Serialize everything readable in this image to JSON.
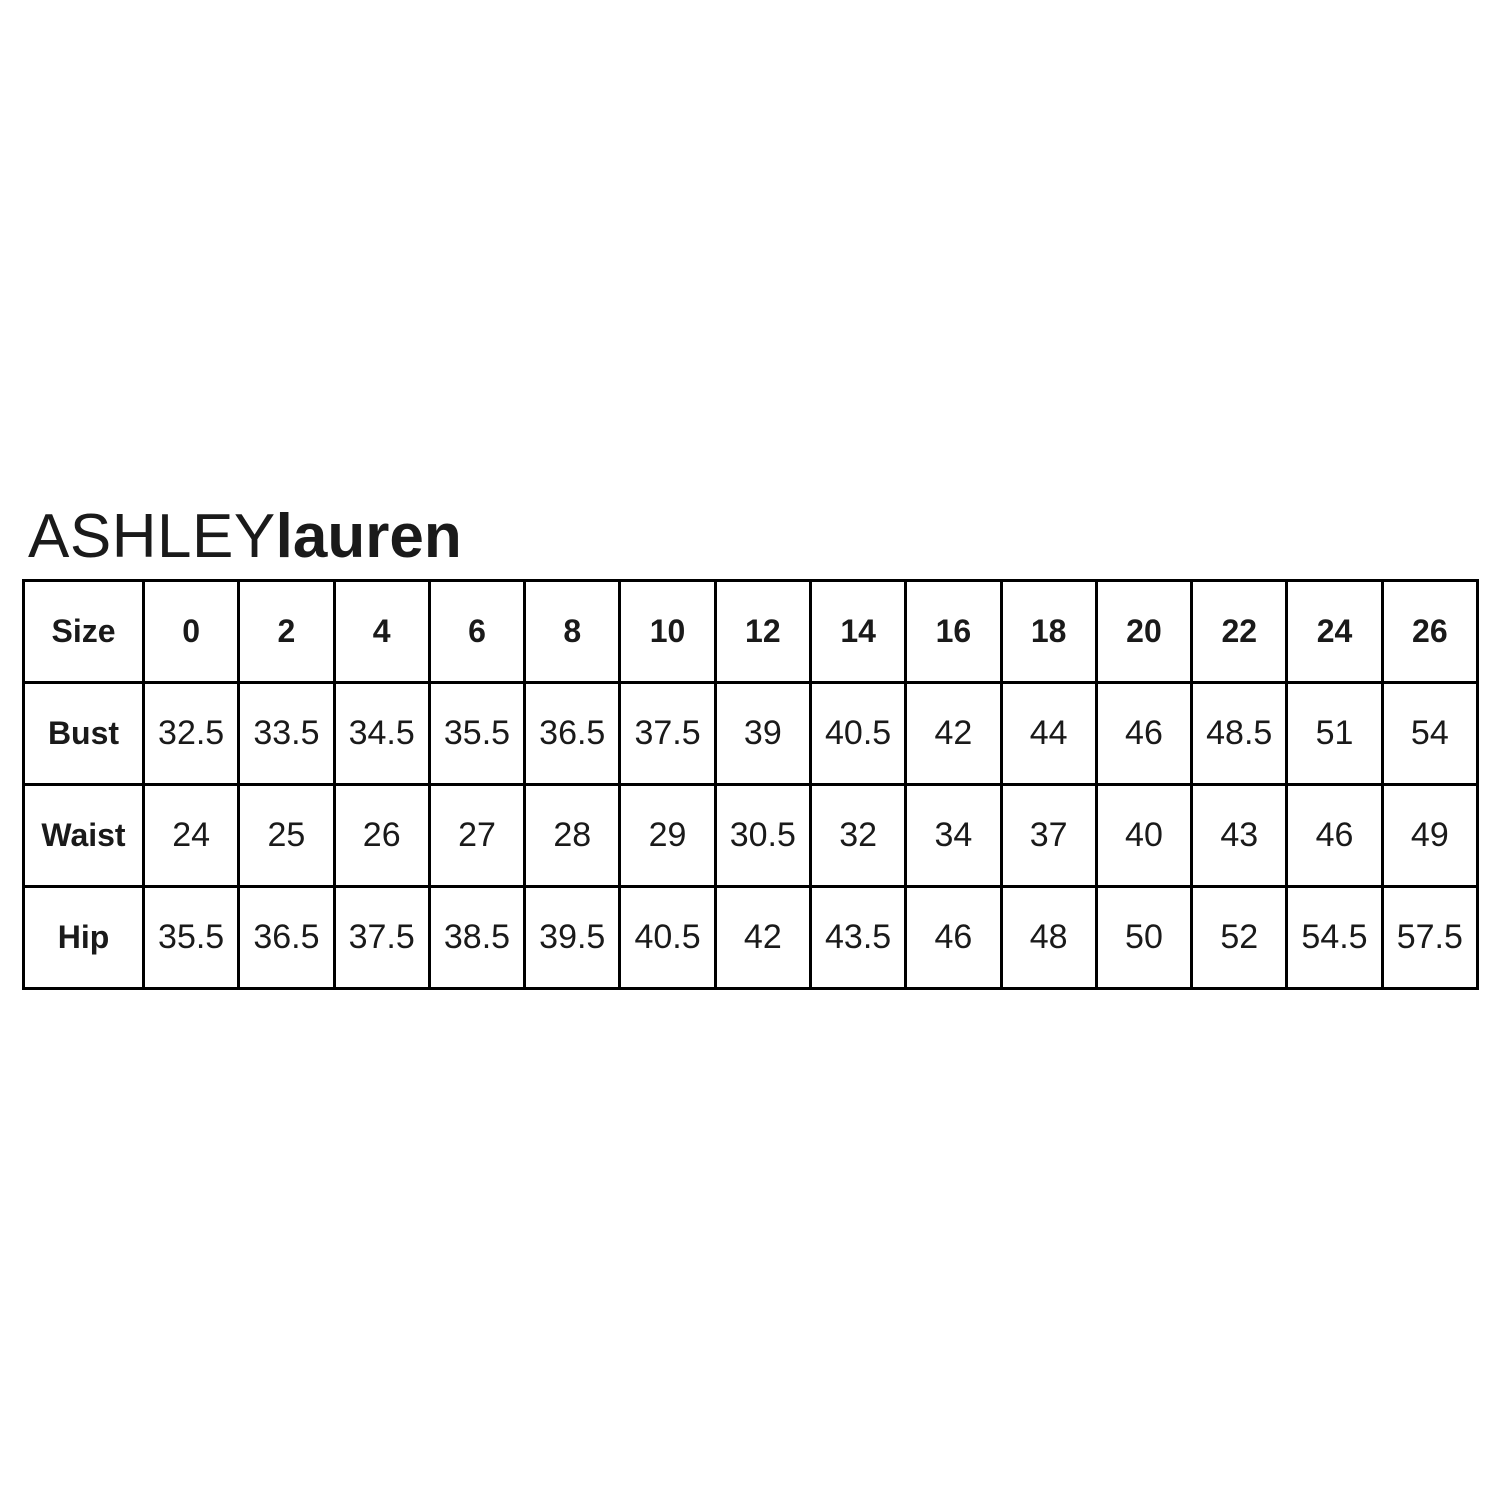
{
  "brand": {
    "name_light": "ASHLEY",
    "name_bold": "lauren"
  },
  "chart_data": {
    "type": "table",
    "columns": [
      "Size",
      "0",
      "2",
      "4",
      "6",
      "8",
      "10",
      "12",
      "14",
      "16",
      "18",
      "20",
      "22",
      "24",
      "26"
    ],
    "rows": [
      {
        "label": "Bust",
        "values": [
          "32.5",
          "33.5",
          "34.5",
          "35.5",
          "36.5",
          "37.5",
          "39",
          "40.5",
          "42",
          "44",
          "46",
          "48.5",
          "51",
          "54"
        ]
      },
      {
        "label": "Waist",
        "values": [
          "24",
          "25",
          "26",
          "27",
          "28",
          "29",
          "30.5",
          "32",
          "34",
          "37",
          "40",
          "43",
          "46",
          "49"
        ]
      },
      {
        "label": "Hip",
        "values": [
          "35.5",
          "36.5",
          "37.5",
          "38.5",
          "39.5",
          "40.5",
          "42",
          "43.5",
          "46",
          "48",
          "50",
          "52",
          "54.5",
          "57.5"
        ]
      }
    ]
  },
  "colors": {
    "text": "#1a1a1a",
    "border": "#000000",
    "background": "#ffffff"
  }
}
